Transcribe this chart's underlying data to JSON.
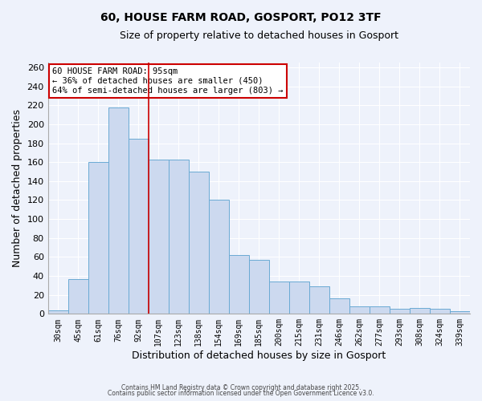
{
  "title": "60, HOUSE FARM ROAD, GOSPORT, PO12 3TF",
  "subtitle": "Size of property relative to detached houses in Gosport",
  "xlabel": "Distribution of detached houses by size in Gosport",
  "ylabel": "Number of detached properties",
  "bar_labels": [
    "30sqm",
    "45sqm",
    "61sqm",
    "76sqm",
    "92sqm",
    "107sqm",
    "123sqm",
    "138sqm",
    "154sqm",
    "169sqm",
    "185sqm",
    "200sqm",
    "215sqm",
    "231sqm",
    "246sqm",
    "262sqm",
    "277sqm",
    "293sqm",
    "308sqm",
    "324sqm",
    "339sqm"
  ],
  "bar_values": [
    4,
    37,
    160,
    218,
    185,
    163,
    163,
    150,
    120,
    62,
    57,
    34,
    34,
    29,
    16,
    8,
    8,
    5,
    6,
    5,
    3
  ],
  "bar_color": "#ccd9ef",
  "bar_edge_color": "#6aaad4",
  "vline_x_idx": 4,
  "vline_color": "#cc0000",
  "annotation_title": "60 HOUSE FARM ROAD: 95sqm",
  "annotation_line1": "← 36% of detached houses are smaller (450)",
  "annotation_line2": "64% of semi-detached houses are larger (803) →",
  "annotation_box_color": "white",
  "annotation_box_edge_color": "#cc0000",
  "ylim": [
    0,
    265
  ],
  "yticks": [
    0,
    20,
    40,
    60,
    80,
    100,
    120,
    140,
    160,
    180,
    200,
    220,
    240,
    260
  ],
  "background_color": "#eef2fb",
  "grid_color": "#ffffff",
  "footnote1": "Contains HM Land Registry data © Crown copyright and database right 2025.",
  "footnote2": "Contains public sector information licensed under the Open Government Licence v3.0."
}
